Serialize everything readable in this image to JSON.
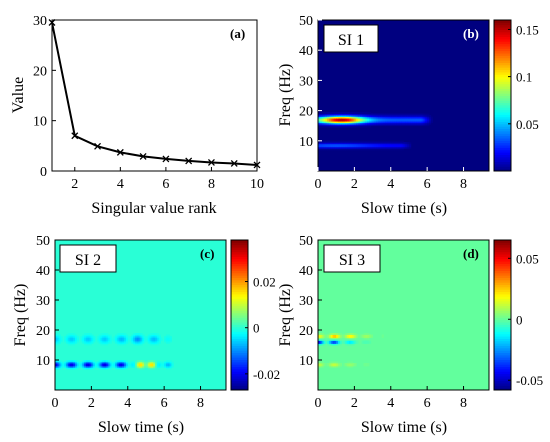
{
  "chart_data": [
    {
      "panel_label": "(a)",
      "type": "line",
      "xlabel": "Singular value rank",
      "ylabel": "Value",
      "xlim": [
        1,
        10
      ],
      "ylim": [
        0,
        30
      ],
      "xticks": [
        2,
        4,
        6,
        8,
        10
      ],
      "yticks": [
        0,
        10,
        20,
        30
      ],
      "x": [
        1,
        2,
        3,
        4,
        5,
        6,
        7,
        8,
        9,
        10
      ],
      "y": [
        29.5,
        7.0,
        4.9,
        3.7,
        2.9,
        2.4,
        2.0,
        1.7,
        1.5,
        1.2
      ],
      "marker": "x",
      "line_color": "#000000"
    },
    {
      "panel_label": "(b)",
      "inset_title": "SI 1",
      "type": "heatmap",
      "xlabel": "Slow time (s)",
      "ylabel": "Freq (Hz)",
      "xlim": [
        0,
        9.4
      ],
      "ylim": [
        0,
        50
      ],
      "xticks": [
        0,
        2,
        4,
        6,
        8
      ],
      "yticks": [
        10,
        20,
        30,
        40,
        50
      ],
      "colorbar": {
        "min": 0,
        "max": 0.16,
        "ticks": [
          0.05,
          0.1,
          0.15
        ],
        "tick_labels": [
          "0.05",
          "0.1",
          "0.15"
        ]
      },
      "background_value": 0.0,
      "features": [
        {
          "t0": 0,
          "t1": 6.3,
          "freq": 17,
          "peak": 0.155,
          "peak_time": 1.3,
          "decay_s": 1.2,
          "floor": 0.035,
          "freq_halfwidth": 1.2
        },
        {
          "t0": 0,
          "t1": 5.2,
          "freq": 8.5,
          "peak": 0.035,
          "peak_time": 1.0,
          "decay_s": 2.0,
          "floor": 0.02,
          "freq_halfwidth": 0.8
        }
      ]
    },
    {
      "panel_label": "(c)",
      "inset_title": "SI 2",
      "type": "heatmap",
      "xlabel": "Slow time (s)",
      "ylabel": "Freq (Hz)",
      "xlim": [
        0,
        9.4
      ],
      "ylim": [
        0,
        50
      ],
      "xticks": [
        0,
        2,
        4,
        6,
        8
      ],
      "yticks": [
        10,
        20,
        30,
        40,
        50
      ],
      "colorbar": {
        "min": -0.027,
        "max": 0.038,
        "ticks": [
          -0.02,
          0,
          0.02
        ],
        "tick_labels": [
          "-0.02",
          "0",
          "0.02"
        ]
      },
      "background_value": 0.0,
      "features": [
        {
          "t0": 0,
          "t1": 6.5,
          "freq": 8.5,
          "peak": 0.035,
          "peak_time": 5.0,
          "decay_s": 0.6,
          "floor": -0.022,
          "freq_halfwidth": 0.9,
          "pattern": "alternating"
        },
        {
          "t0": 0,
          "t1": 6.5,
          "freq": 17,
          "peak": -0.01,
          "peak_time": 4.5,
          "decay_s": 0.8,
          "floor": -0.006,
          "freq_halfwidth": 1.3,
          "pattern": "alternating"
        }
      ]
    },
    {
      "panel_label": "(d)",
      "inset_title": "SI 3",
      "type": "heatmap",
      "xlabel": "Slow time (s)",
      "ylabel": "Freq (Hz)",
      "xlim": [
        0,
        9.4
      ],
      "ylim": [
        0,
        50
      ],
      "xticks": [
        0,
        2,
        4,
        6,
        8
      ],
      "yticks": [
        10,
        20,
        30,
        40,
        50
      ],
      "colorbar": {
        "min": -0.058,
        "max": 0.065,
        "ticks": [
          -0.05,
          0,
          0.05
        ],
        "tick_labels": [
          "-0.05",
          "0",
          "0.05"
        ]
      },
      "background_value": 0.0,
      "features": [
        {
          "t0": 0,
          "t1": 4.6,
          "freq": 18,
          "peak": 0.03,
          "peak_time": 1.0,
          "decay_s": 1.5,
          "floor": 0.0,
          "freq_halfwidth": 0.6,
          "pattern": "alternating"
        },
        {
          "t0": 0,
          "t1": 4.6,
          "freq": 16,
          "peak": -0.05,
          "peak_time": 0.2,
          "decay_s": 1.5,
          "floor": 0.0,
          "freq_halfwidth": 0.6,
          "pattern": "alternating"
        },
        {
          "t0": 0,
          "t1": 3.8,
          "freq": 8.5,
          "peak": 0.015,
          "peak_time": 0.5,
          "decay_s": 1.5,
          "floor": 0.0,
          "freq_halfwidth": 0.6,
          "pattern": "alternating"
        }
      ]
    }
  ]
}
